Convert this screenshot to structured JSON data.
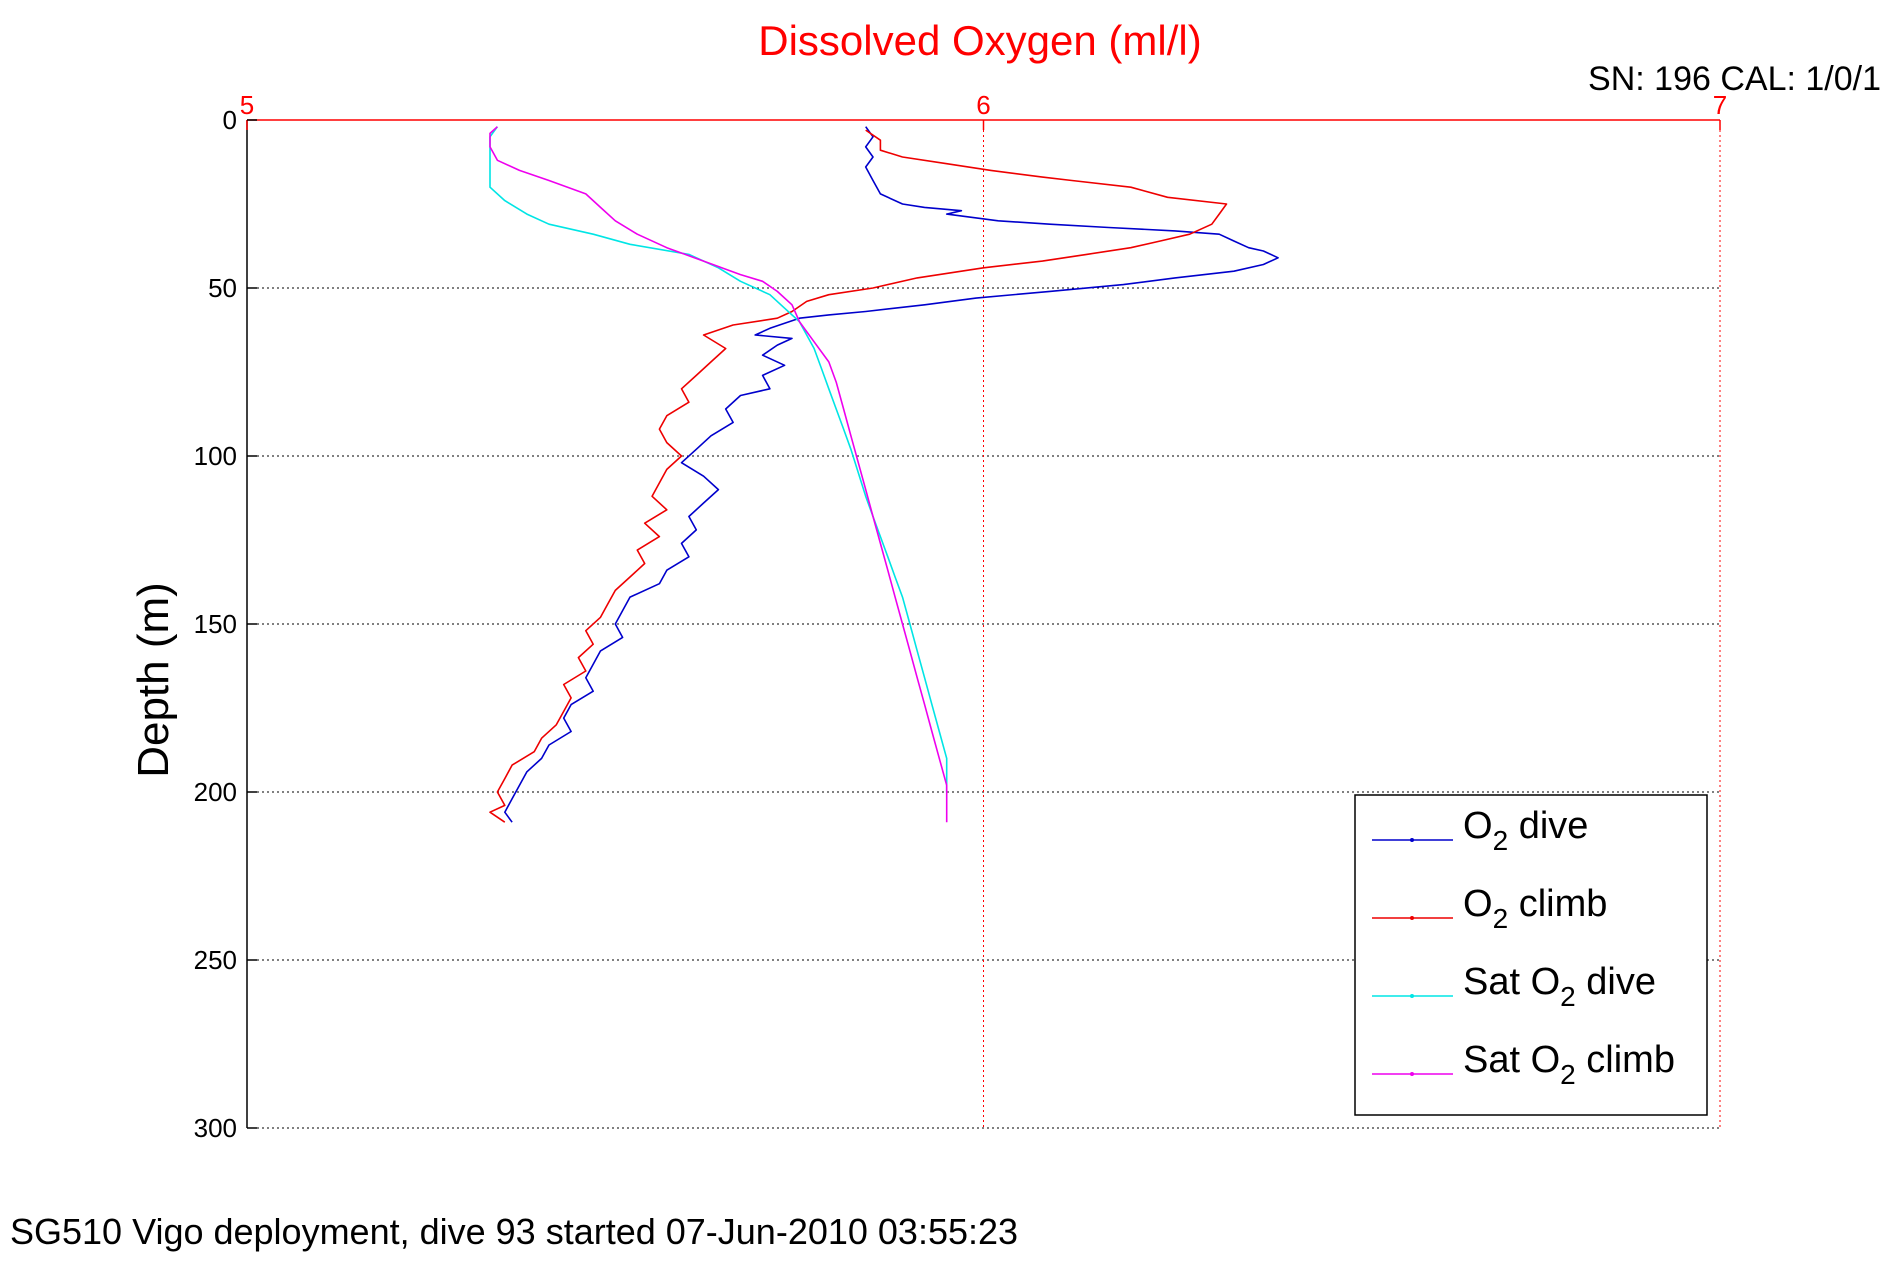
{
  "header": {
    "title": "Dissolved Oxygen (ml/l)",
    "sn_cal": "SN: 196  CAL: 1/0/1"
  },
  "footer": {
    "caption": "SG510 Vigo deployment, dive 93 started 07-Jun-2010 03:55:23"
  },
  "chart_data": {
    "type": "line",
    "title": "Dissolved Oxygen (ml/l)",
    "xlabel": "",
    "ylabel": "Depth (m)",
    "xlim": [
      5,
      7
    ],
    "ylim": [
      0,
      300
    ],
    "y_reversed": true,
    "x_axis_position": "top",
    "x_ticks": [
      5,
      6,
      7
    ],
    "y_ticks": [
      0,
      50,
      100,
      150,
      200,
      250,
      300
    ],
    "grid": true,
    "legend_position": "bottom-right",
    "colors": {
      "x_axis": "#ff0000",
      "title": "#ff0000",
      "o2_dive": "#0000cc",
      "o2_climb": "#ee0000",
      "sat_dive": "#00e5e5",
      "sat_climb": "#ee00ee"
    },
    "series": [
      {
        "name": "O2 dive",
        "legend_main": "O",
        "legend_sub": "2",
        "legend_rest": " dive",
        "color": "#0000cc",
        "points": [
          [
            5.84,
            2
          ],
          [
            5.85,
            5
          ],
          [
            5.84,
            8
          ],
          [
            5.85,
            11
          ],
          [
            5.84,
            14
          ],
          [
            5.85,
            18
          ],
          [
            5.86,
            22
          ],
          [
            5.89,
            25
          ],
          [
            5.92,
            26
          ],
          [
            5.97,
            27
          ],
          [
            5.95,
            28
          ],
          [
            6.02,
            30
          ],
          [
            6.09,
            31
          ],
          [
            6.17,
            32
          ],
          [
            6.26,
            33
          ],
          [
            6.32,
            34
          ],
          [
            6.34,
            36
          ],
          [
            6.36,
            38
          ],
          [
            6.38,
            39
          ],
          [
            6.4,
            41
          ],
          [
            6.38,
            43
          ],
          [
            6.34,
            45
          ],
          [
            6.26,
            47
          ],
          [
            6.19,
            49
          ],
          [
            6.09,
            51
          ],
          [
            5.99,
            53
          ],
          [
            5.92,
            55
          ],
          [
            5.84,
            57
          ],
          [
            5.79,
            58
          ],
          [
            5.75,
            59
          ],
          [
            5.71,
            62
          ],
          [
            5.69,
            64
          ],
          [
            5.74,
            65
          ],
          [
            5.72,
            67
          ],
          [
            5.7,
            70
          ],
          [
            5.73,
            73
          ],
          [
            5.7,
            76
          ],
          [
            5.71,
            80
          ],
          [
            5.67,
            82
          ],
          [
            5.65,
            86
          ],
          [
            5.66,
            90
          ],
          [
            5.63,
            94
          ],
          [
            5.61,
            98
          ],
          [
            5.59,
            102
          ],
          [
            5.62,
            106
          ],
          [
            5.64,
            110
          ],
          [
            5.62,
            114
          ],
          [
            5.6,
            118
          ],
          [
            5.61,
            122
          ],
          [
            5.59,
            126
          ],
          [
            5.6,
            130
          ],
          [
            5.57,
            134
          ],
          [
            5.56,
            138
          ],
          [
            5.52,
            142
          ],
          [
            5.51,
            146
          ],
          [
            5.5,
            150
          ],
          [
            5.51,
            154
          ],
          [
            5.48,
            158
          ],
          [
            5.47,
            162
          ],
          [
            5.46,
            166
          ],
          [
            5.47,
            170
          ],
          [
            5.44,
            174
          ],
          [
            5.43,
            178
          ],
          [
            5.44,
            182
          ],
          [
            5.41,
            186
          ],
          [
            5.4,
            190
          ],
          [
            5.38,
            194
          ],
          [
            5.37,
            198
          ],
          [
            5.36,
            202
          ],
          [
            5.35,
            206
          ],
          [
            5.36,
            209
          ]
        ]
      },
      {
        "name": "O2 climb",
        "legend_main": "O",
        "legend_sub": "2",
        "legend_rest": " climb",
        "color": "#ee0000",
        "points": [
          [
            5.35,
            209
          ],
          [
            5.33,
            206
          ],
          [
            5.35,
            204
          ],
          [
            5.34,
            200
          ],
          [
            5.35,
            196
          ],
          [
            5.36,
            192
          ],
          [
            5.39,
            188
          ],
          [
            5.4,
            184
          ],
          [
            5.42,
            180
          ],
          [
            5.43,
            176
          ],
          [
            5.44,
            172
          ],
          [
            5.43,
            168
          ],
          [
            5.46,
            164
          ],
          [
            5.45,
            160
          ],
          [
            5.47,
            156
          ],
          [
            5.46,
            152
          ],
          [
            5.48,
            148
          ],
          [
            5.49,
            144
          ],
          [
            5.5,
            140
          ],
          [
            5.52,
            136
          ],
          [
            5.54,
            132
          ],
          [
            5.53,
            128
          ],
          [
            5.56,
            124
          ],
          [
            5.54,
            120
          ],
          [
            5.57,
            116
          ],
          [
            5.55,
            112
          ],
          [
            5.56,
            108
          ],
          [
            5.57,
            104
          ],
          [
            5.59,
            100
          ],
          [
            5.57,
            96
          ],
          [
            5.56,
            92
          ],
          [
            5.57,
            88
          ],
          [
            5.6,
            84
          ],
          [
            5.59,
            80
          ],
          [
            5.61,
            76
          ],
          [
            5.63,
            72
          ],
          [
            5.65,
            68
          ],
          [
            5.62,
            64
          ],
          [
            5.66,
            61
          ],
          [
            5.72,
            59
          ],
          [
            5.74,
            57
          ],
          [
            5.76,
            54
          ],
          [
            5.79,
            52
          ],
          [
            5.85,
            50
          ],
          [
            5.91,
            47
          ],
          [
            6.0,
            44
          ],
          [
            6.08,
            42
          ],
          [
            6.14,
            40
          ],
          [
            6.2,
            38
          ],
          [
            6.24,
            36
          ],
          [
            6.28,
            34
          ],
          [
            6.31,
            31
          ],
          [
            6.32,
            28
          ],
          [
            6.33,
            25
          ],
          [
            6.25,
            23
          ],
          [
            6.2,
            20
          ],
          [
            6.12,
            18
          ],
          [
            6.08,
            17
          ],
          [
            6.01,
            15
          ],
          [
            5.95,
            13
          ],
          [
            5.89,
            11
          ],
          [
            5.86,
            9
          ],
          [
            5.86,
            6
          ],
          [
            5.84,
            3
          ]
        ]
      },
      {
        "name": "Sat O2 dive",
        "legend_main": "Sat O",
        "legend_sub": "2",
        "legend_rest": " dive",
        "color": "#00e5e5",
        "points": [
          [
            5.34,
            2
          ],
          [
            5.33,
            5
          ],
          [
            5.33,
            10
          ],
          [
            5.33,
            15
          ],
          [
            5.33,
            20
          ],
          [
            5.35,
            24
          ],
          [
            5.38,
            28
          ],
          [
            5.41,
            31
          ],
          [
            5.47,
            34
          ],
          [
            5.52,
            37
          ],
          [
            5.6,
            40
          ],
          [
            5.64,
            44
          ],
          [
            5.67,
            48
          ],
          [
            5.71,
            52
          ],
          [
            5.73,
            56
          ],
          [
            5.75,
            60
          ],
          [
            5.76,
            64
          ],
          [
            5.77,
            68
          ],
          [
            5.78,
            74
          ],
          [
            5.79,
            80
          ],
          [
            5.8,
            86
          ],
          [
            5.81,
            92
          ],
          [
            5.82,
            98
          ],
          [
            5.83,
            105
          ],
          [
            5.84,
            112
          ],
          [
            5.85,
            118
          ],
          [
            5.86,
            124
          ],
          [
            5.87,
            130
          ],
          [
            5.88,
            136
          ],
          [
            5.89,
            142
          ],
          [
            5.9,
            150
          ],
          [
            5.91,
            158
          ],
          [
            5.92,
            166
          ],
          [
            5.93,
            174
          ],
          [
            5.94,
            182
          ],
          [
            5.95,
            190
          ],
          [
            5.95,
            196
          ],
          [
            5.95,
            200
          ]
        ]
      },
      {
        "name": "Sat O2 climb",
        "legend_main": "Sat O",
        "legend_sub": "2",
        "legend_rest": " climb",
        "color": "#ee00ee",
        "points": [
          [
            5.95,
            209
          ],
          [
            5.95,
            204
          ],
          [
            5.95,
            198
          ],
          [
            5.94,
            190
          ],
          [
            5.93,
            182
          ],
          [
            5.92,
            174
          ],
          [
            5.91,
            166
          ],
          [
            5.9,
            158
          ],
          [
            5.89,
            150
          ],
          [
            5.88,
            142
          ],
          [
            5.87,
            134
          ],
          [
            5.86,
            126
          ],
          [
            5.85,
            118
          ],
          [
            5.84,
            110
          ],
          [
            5.83,
            102
          ],
          [
            5.82,
            94
          ],
          [
            5.81,
            86
          ],
          [
            5.8,
            78
          ],
          [
            5.79,
            72
          ],
          [
            5.77,
            66
          ],
          [
            5.75,
            60
          ],
          [
            5.74,
            55
          ],
          [
            5.72,
            51
          ],
          [
            5.7,
            48
          ],
          [
            5.67,
            46
          ],
          [
            5.62,
            42
          ],
          [
            5.57,
            38
          ],
          [
            5.53,
            34
          ],
          [
            5.5,
            30
          ],
          [
            5.48,
            26
          ],
          [
            5.46,
            22
          ],
          [
            5.41,
            18
          ],
          [
            5.37,
            15
          ],
          [
            5.34,
            12
          ],
          [
            5.33,
            8
          ],
          [
            5.33,
            4
          ],
          [
            5.34,
            2
          ]
        ]
      }
    ]
  }
}
